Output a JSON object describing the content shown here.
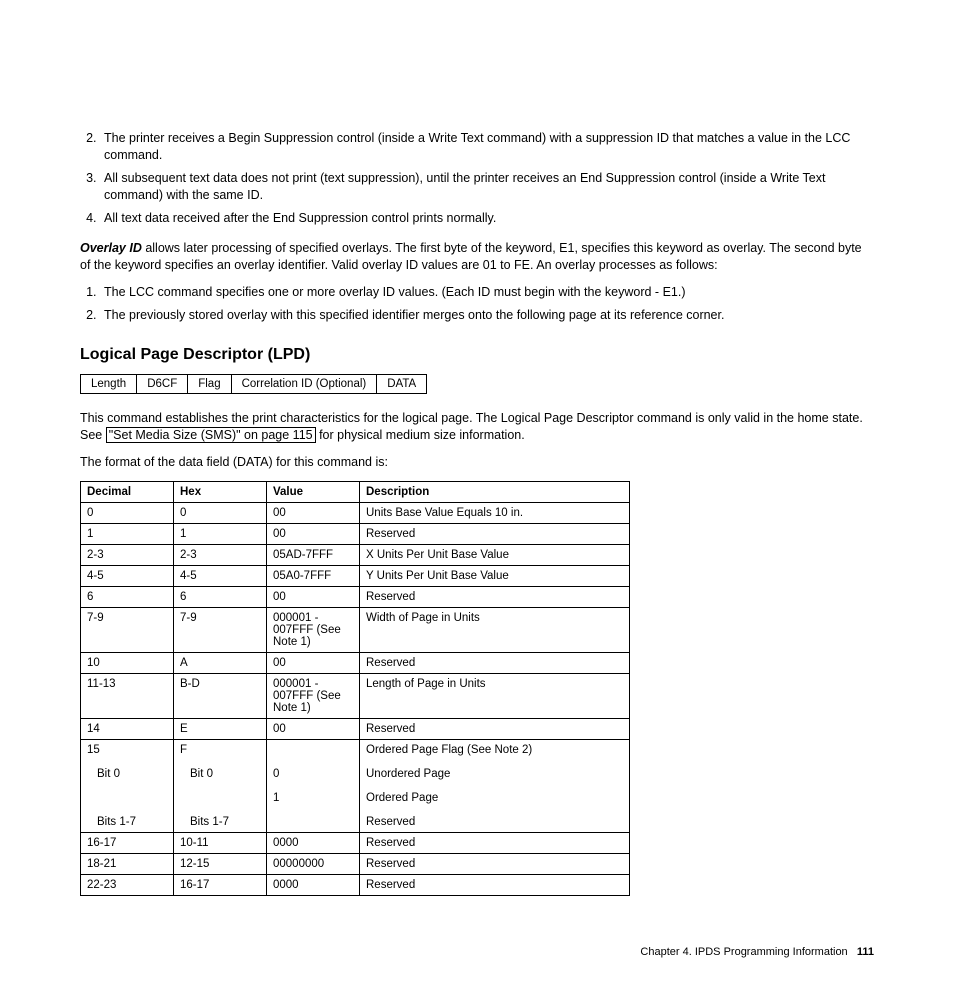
{
  "list1": [
    "The printer receives a Begin Suppression control (inside a Write Text command) with a suppression ID that matches a value in the LCC command.",
    "All subsequent text data does not print (text suppression), until the printer receives an End Suppression control (inside a Write Text command) with the same ID.",
    "All text data received after the End Suppression control prints normally."
  ],
  "overlay": {
    "lead": "Overlay ID",
    "text": " allows later processing of specified overlays. The first byte of the keyword, E1, specifies this keyword as overlay. The second byte of the keyword specifies an overlay identifier. Valid overlay ID values are 01 to FE. An overlay processes as follows:"
  },
  "list2": [
    "The LCC command specifies one or more overlay ID values. (Each ID must begin with the keyword - E1.)",
    "The previously stored overlay with this specified identifier merges onto the following page at its reference corner."
  ],
  "section_title": "Logical Page Descriptor (LPD)",
  "header_table": [
    "Length",
    "D6CF",
    "Flag",
    "Correlation ID (Optional)",
    "DATA"
  ],
  "para1_a": "This command establishes the print characteristics for the logical page. The Logical Page Descriptor command is only valid in the home state. See ",
  "para1_link": "\"Set Media Size (SMS)\" on page 115",
  "para1_b": " for physical medium size information.",
  "para2": "The format of the data field (DATA) for this command is:",
  "data_table": {
    "headers": [
      "Decimal",
      "Hex",
      "Value",
      "Description"
    ],
    "rows": [
      [
        "0",
        "0",
        "00",
        "Units Base Value Equals 10 in."
      ],
      [
        "1",
        "1",
        "00",
        "Reserved"
      ],
      [
        "2-3",
        "2-3",
        "05AD-7FFF",
        "X Units Per Unit Base Value"
      ],
      [
        "4-5",
        "4-5",
        "05A0-7FFF",
        "Y Units Per Unit Base Value"
      ],
      [
        "6",
        "6",
        "00",
        "Reserved"
      ],
      [
        "7-9",
        "7-9",
        "000001 - 007FFF (See Note 1)",
        "Width of Page in Units"
      ],
      [
        "10",
        "A",
        "00",
        "Reserved"
      ],
      [
        "11-13",
        "B-D",
        "000001 - 007FFF (See Note 1)",
        "Length of Page in Units"
      ],
      [
        "14",
        "E",
        "00",
        "Reserved"
      ]
    ],
    "row15": {
      "dec": "15",
      "hex": "F",
      "val": "",
      "desc": "Ordered Page Flag (See Note 2)",
      "sub": [
        {
          "dec": "Bit 0",
          "hex": "Bit 0",
          "val": "0",
          "desc": "Unordered Page"
        },
        {
          "dec": "",
          "hex": "",
          "val": "1",
          "desc": "Ordered Page"
        },
        {
          "dec": "",
          "hex": "",
          "val": "",
          "desc": ""
        },
        {
          "dec": "Bits 1-7",
          "hex": "Bits 1-7",
          "val": "",
          "desc": "Reserved"
        }
      ]
    },
    "tail": [
      [
        "16-17",
        "10-11",
        "0000",
        "Reserved"
      ],
      [
        "18-21",
        "12-15",
        "00000000",
        "Reserved"
      ],
      [
        "22-23",
        "16-17",
        "0000",
        "Reserved"
      ]
    ]
  },
  "footer": {
    "chapter": "Chapter 4. IPDS Programming Information",
    "page": "111"
  }
}
